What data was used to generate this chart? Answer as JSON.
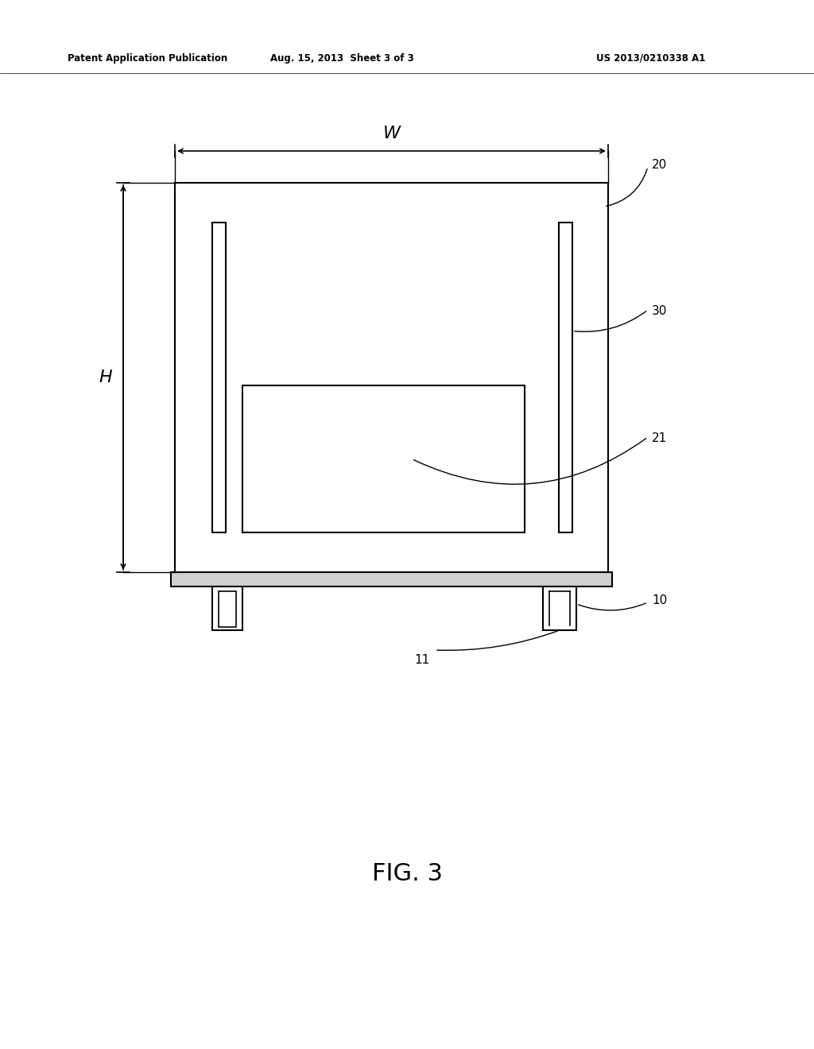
{
  "bg_color": "#ffffff",
  "line_color": "#000000",
  "header_left": "Patent Application Publication",
  "header_mid": "Aug. 15, 2013  Sheet 3 of 3",
  "header_right": "US 2013/0210338 A1",
  "fig_label": "FIG. 3",
  "lw": 1.5
}
